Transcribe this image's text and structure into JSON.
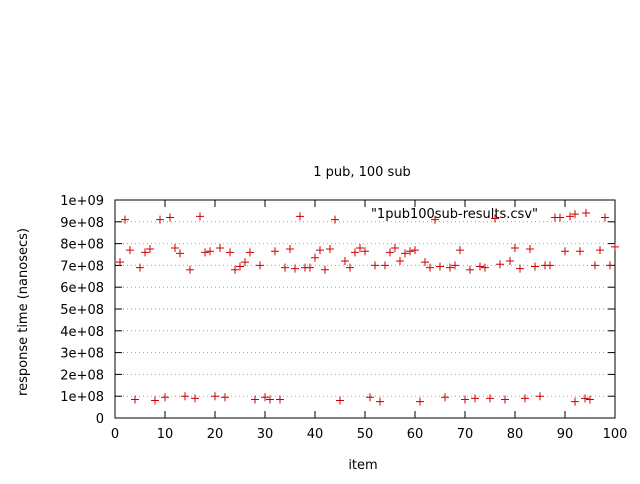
{
  "chart_data": {
    "type": "scatter",
    "title": "1 pub, 100 sub",
    "xlabel": "item",
    "ylabel": "response time (nanosecs)",
    "xlim": [
      0,
      100
    ],
    "ylim": [
      0,
      1000000000
    ],
    "grid": true,
    "legend_placement": "top-right",
    "x_ticks": [
      {
        "value": 0,
        "label": "0"
      },
      {
        "value": 10,
        "label": "10"
      },
      {
        "value": 20,
        "label": "20"
      },
      {
        "value": 30,
        "label": "30"
      },
      {
        "value": 40,
        "label": "40"
      },
      {
        "value": 50,
        "label": "50"
      },
      {
        "value": 60,
        "label": "60"
      },
      {
        "value": 70,
        "label": "70"
      },
      {
        "value": 80,
        "label": "80"
      },
      {
        "value": 90,
        "label": "90"
      },
      {
        "value": 100,
        "label": "100"
      }
    ],
    "y_ticks": [
      {
        "value": 0,
        "label": "0"
      },
      {
        "value": 100000000,
        "label": "1e+08"
      },
      {
        "value": 200000000,
        "label": "2e+08"
      },
      {
        "value": 300000000,
        "label": "3e+08"
      },
      {
        "value": 400000000,
        "label": "4e+08"
      },
      {
        "value": 500000000,
        "label": "5e+08"
      },
      {
        "value": 600000000,
        "label": "6e+08"
      },
      {
        "value": 700000000,
        "label": "7e+08"
      },
      {
        "value": 800000000,
        "label": "8e+08"
      },
      {
        "value": 900000000,
        "label": "9e+08"
      },
      {
        "value": 1000000000,
        "label": "1e+09"
      }
    ],
    "series": [
      {
        "name": "\"1pub100sub-results.csv\"",
        "color": "#cc0000",
        "marker": "plus",
        "points": [
          [
            1,
            715000000
          ],
          [
            2,
            910000000
          ],
          [
            3,
            770000000
          ],
          [
            4,
            85000000
          ],
          [
            5,
            690000000
          ],
          [
            6,
            760000000
          ],
          [
            7,
            775000000
          ],
          [
            8,
            80000000
          ],
          [
            9,
            910000000
          ],
          [
            10,
            95000000
          ],
          [
            11,
            920000000
          ],
          [
            12,
            780000000
          ],
          [
            13,
            755000000
          ],
          [
            14,
            100000000
          ],
          [
            15,
            680000000
          ],
          [
            16,
            90000000
          ],
          [
            17,
            925000000
          ],
          [
            18,
            760000000
          ],
          [
            19,
            765000000
          ],
          [
            20,
            100000000
          ],
          [
            21,
            780000000
          ],
          [
            22,
            95000000
          ],
          [
            23,
            760000000
          ],
          [
            24,
            680000000
          ],
          [
            25,
            695000000
          ],
          [
            26,
            715000000
          ],
          [
            27,
            760000000
          ],
          [
            28,
            85000000
          ],
          [
            29,
            700000000
          ],
          [
            30,
            95000000
          ],
          [
            31,
            85000000
          ],
          [
            32,
            765000000
          ],
          [
            33,
            85000000
          ],
          [
            34,
            690000000
          ],
          [
            35,
            775000000
          ],
          [
            36,
            685000000
          ],
          [
            37,
            925000000
          ],
          [
            38,
            690000000
          ],
          [
            39,
            690000000
          ],
          [
            40,
            735000000
          ],
          [
            41,
            770000000
          ],
          [
            42,
            680000000
          ],
          [
            43,
            775000000
          ],
          [
            44,
            910000000
          ],
          [
            45,
            80000000
          ],
          [
            46,
            720000000
          ],
          [
            47,
            690000000
          ],
          [
            48,
            760000000
          ],
          [
            49,
            780000000
          ],
          [
            50,
            765000000
          ],
          [
            51,
            95000000
          ],
          [
            52,
            700000000
          ],
          [
            53,
            75000000
          ],
          [
            54,
            700000000
          ],
          [
            55,
            760000000
          ],
          [
            56,
            780000000
          ],
          [
            57,
            720000000
          ],
          [
            58,
            755000000
          ],
          [
            59,
            765000000
          ],
          [
            60,
            770000000
          ],
          [
            61,
            75000000
          ],
          [
            62,
            715000000
          ],
          [
            63,
            690000000
          ],
          [
            64,
            910000000
          ],
          [
            65,
            695000000
          ],
          [
            66,
            95000000
          ],
          [
            67,
            690000000
          ],
          [
            68,
            700000000
          ],
          [
            69,
            770000000
          ],
          [
            70,
            85000000
          ],
          [
            71,
            680000000
          ],
          [
            72,
            90000000
          ],
          [
            73,
            695000000
          ],
          [
            74,
            690000000
          ],
          [
            75,
            90000000
          ],
          [
            76,
            915000000
          ],
          [
            77,
            705000000
          ],
          [
            78,
            85000000
          ],
          [
            79,
            720000000
          ],
          [
            80,
            780000000
          ],
          [
            81,
            685000000
          ],
          [
            82,
            90000000
          ],
          [
            83,
            775000000
          ],
          [
            84,
            695000000
          ],
          [
            85,
            100000000
          ],
          [
            86,
            700000000
          ],
          [
            87,
            700000000
          ],
          [
            88,
            920000000
          ],
          [
            89,
            920000000
          ],
          [
            90,
            765000000
          ],
          [
            91,
            925000000
          ],
          [
            92,
            935000000
          ],
          [
            92,
            75000000
          ],
          [
            93,
            765000000
          ],
          [
            94,
            90000000
          ],
          [
            95,
            85000000
          ],
          [
            96,
            700000000
          ],
          [
            97,
            770000000
          ],
          [
            98,
            920000000
          ],
          [
            99,
            700000000
          ],
          [
            100,
            785000000
          ]
        ]
      }
    ]
  }
}
